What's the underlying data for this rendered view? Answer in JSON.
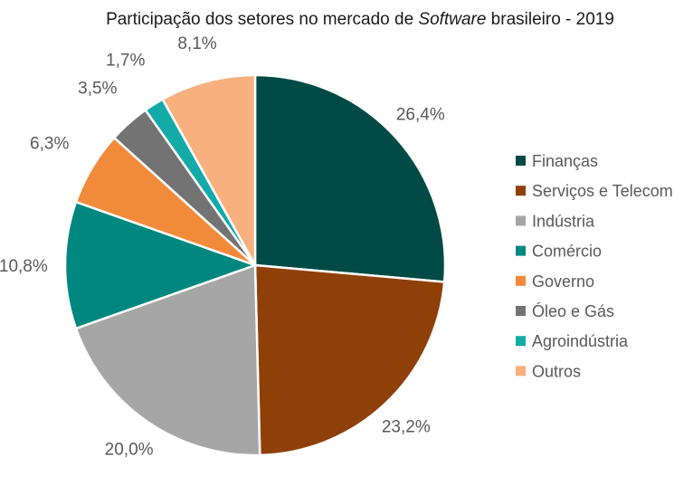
{
  "chart_data": {
    "type": "pie",
    "title": {
      "before": "Participação dos setores no mercado de ",
      "italic": "Software",
      "after": " brasileiro - 2019"
    },
    "legend_position": "right",
    "slices": [
      {
        "name": "Finanças",
        "value": 26.4,
        "label": "26,4%",
        "color": "#014A45"
      },
      {
        "name": "Serviços e Telecom",
        "value": 23.2,
        "label": "23,2%",
        "color": "#8F4008"
      },
      {
        "name": "Indústria",
        "value": 20.0,
        "label": "20,0%",
        "color": "#A6A6A6"
      },
      {
        "name": "Comércio",
        "value": 10.8,
        "label": "10,8%",
        "color": "#00877F"
      },
      {
        "name": "Governo",
        "value": 6.3,
        "label": "6,3%",
        "color": "#F28A3C"
      },
      {
        "name": "Óleo e Gás",
        "value": 3.5,
        "label": "3,5%",
        "color": "#737373"
      },
      {
        "name": "Agroindústria",
        "value": 1.7,
        "label": "1,7%",
        "color": "#14AAA8"
      },
      {
        "name": "Outros",
        "value": 8.1,
        "label": "8,1%",
        "color": "#F7B07E"
      }
    ]
  }
}
